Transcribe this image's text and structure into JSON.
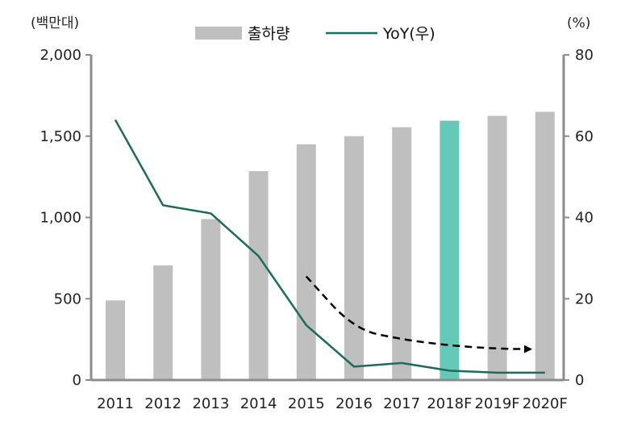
{
  "chart_data": {
    "type": "bar+line",
    "categories": [
      "2011",
      "2012",
      "2013",
      "2014",
      "2015",
      "2016",
      "2017",
      "2018F",
      "2019F",
      "2020F"
    ],
    "series": [
      {
        "name": "출하량",
        "type": "bar",
        "axis": "left",
        "values": [
          490,
          705,
          990,
          1285,
          1450,
          1500,
          1555,
          1595,
          1625,
          1650
        ],
        "color": "#bfbfbf",
        "highlight": {
          "category": "2018F",
          "color": "#66c9b8"
        }
      },
      {
        "name": "YoY(우)",
        "type": "line",
        "axis": "right",
        "values": [
          64,
          43,
          41,
          30.5,
          13.5,
          3.3,
          4.2,
          2.3,
          1.8,
          1.8
        ],
        "color": "#1e6b5c"
      }
    ],
    "trend_arrow": {
      "style": "dashed",
      "color": "#000000",
      "points": [
        [
          2015,
          25.5
        ],
        [
          2016,
          12.5
        ],
        [
          2017,
          10
        ],
        [
          2018,
          8.5
        ],
        [
          2019,
          7.7
        ],
        [
          2019.7,
          7.6
        ]
      ]
    },
    "left_axis": {
      "unit": "(백만대)",
      "ylim": [
        0,
        2000
      ],
      "ticks": [
        "0",
        "500",
        "1,000",
        "1,500",
        "2,000"
      ],
      "tick_values": [
        0,
        500,
        1000,
        1500,
        2000
      ]
    },
    "right_axis": {
      "unit": "(%)",
      "ylim": [
        0,
        80
      ],
      "ticks": [
        "0",
        "20",
        "40",
        "60",
        "80"
      ],
      "tick_values": [
        0,
        20,
        40,
        60,
        80
      ]
    },
    "grid": false,
    "legend_position": "top-center"
  }
}
